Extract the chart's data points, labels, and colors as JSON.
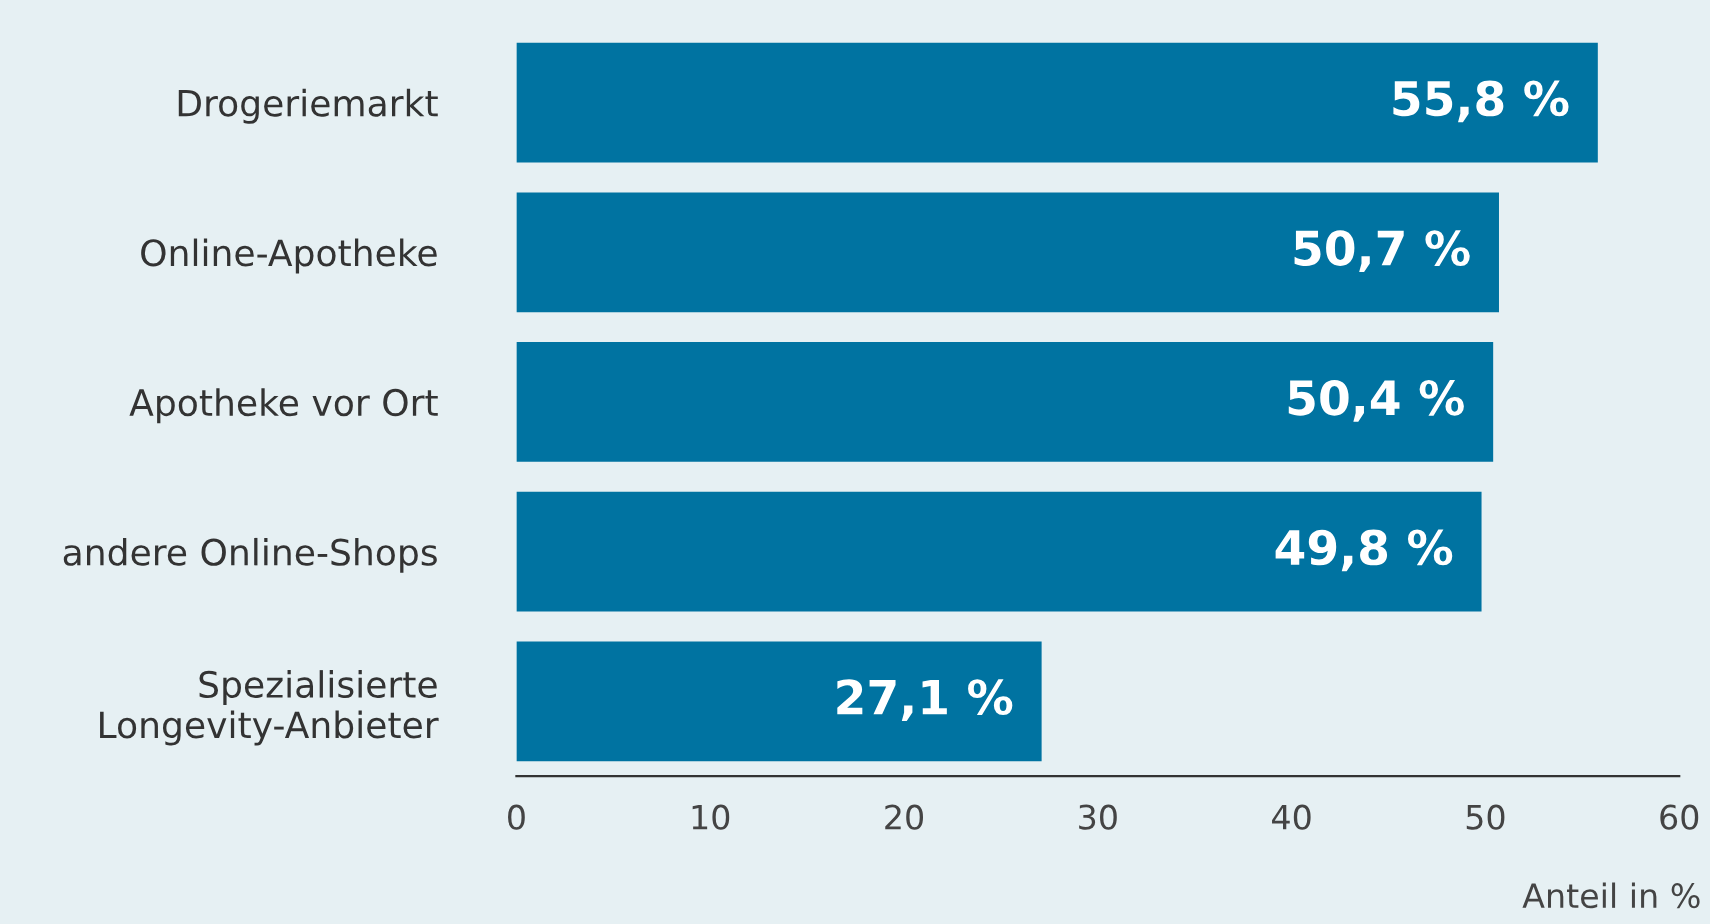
{
  "chart_data": {
    "type": "bar",
    "orientation": "horizontal",
    "categories": [
      "Drogeriemarkt",
      "Online-Apotheke",
      "Apotheke vor Ort",
      "andere Online-Shops",
      "Spezialisierte\nLongevity-Anbieter"
    ],
    "values": [
      55.8,
      50.7,
      50.4,
      49.8,
      27.1
    ],
    "value_labels": [
      "55,8 %",
      "50,7 %",
      "50,4 %",
      "49,8 %",
      "27,1 %"
    ],
    "color": "#0073a1",
    "xlim": [
      0,
      60
    ],
    "xticks": [
      0,
      10,
      20,
      30,
      40,
      50,
      60
    ],
    "xlabel": "Anteil in %",
    "grid": false,
    "legend": false
  }
}
